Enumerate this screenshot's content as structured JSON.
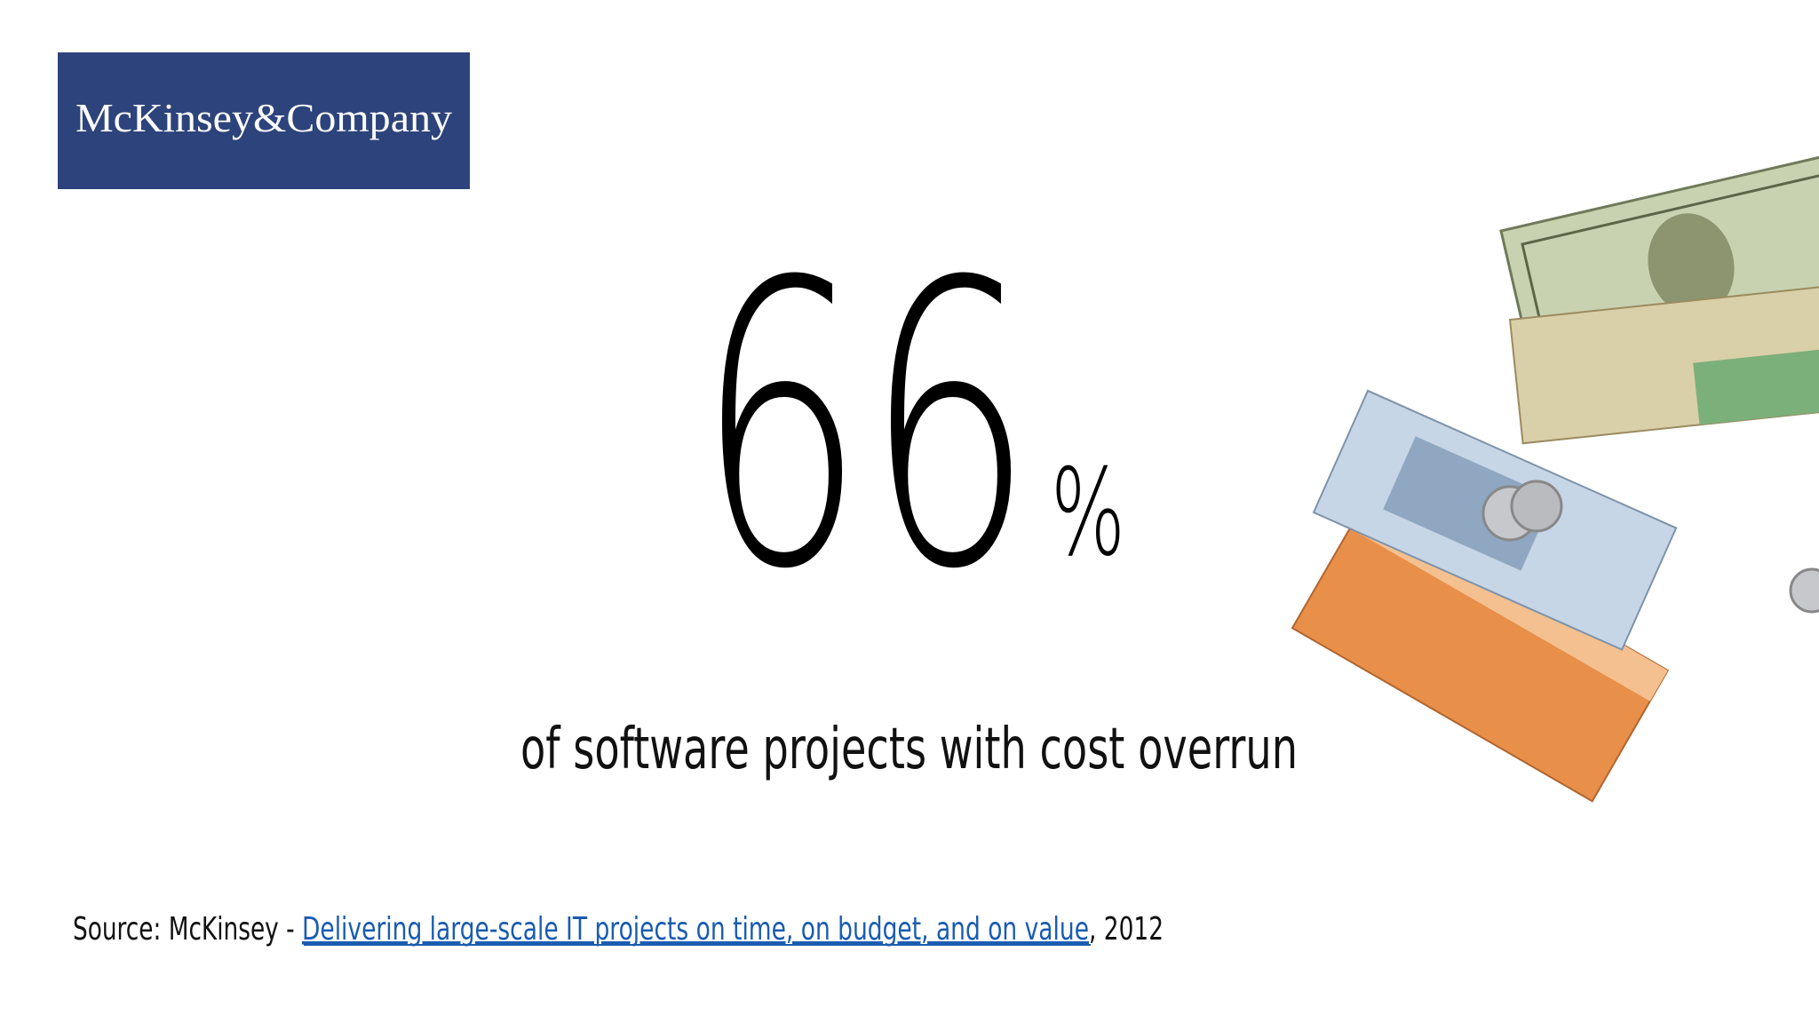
{
  "logo": {
    "text": "McKinsey&Company"
  },
  "headline": {
    "number": "66",
    "unit": "%"
  },
  "subtitle": "of software projects with cost overrun",
  "source": {
    "prefix": "Source: McKinsey - ",
    "link": "Delivering large-scale IT projects on time, on budget, and on value",
    "suffix": ", 2012"
  }
}
